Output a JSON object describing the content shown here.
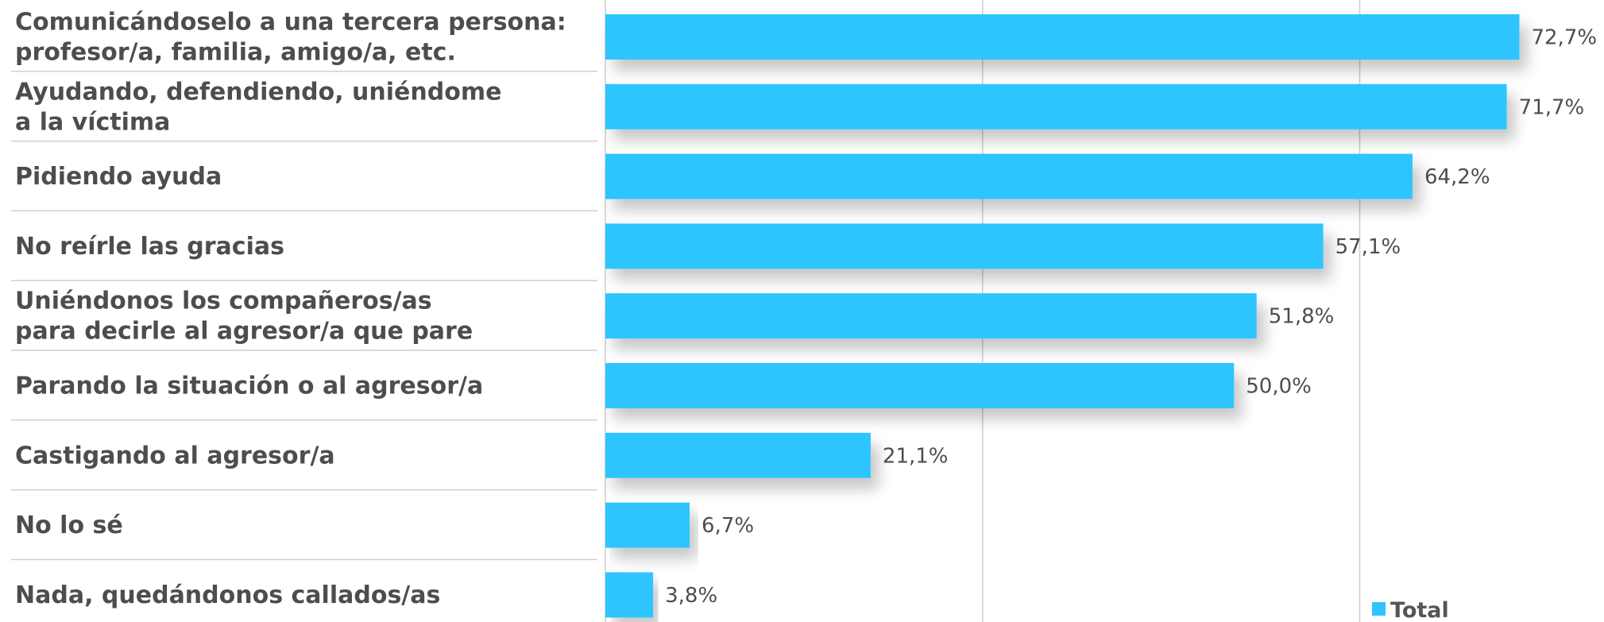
{
  "chart_data": {
    "type": "bar",
    "orientation": "horizontal",
    "categories": [
      [
        "Comunicándoselo a una tercera persona:",
        "profesor/a, familia, amigo/a, etc."
      ],
      [
        "Ayudando, defendiendo, uniéndome",
        "a la víctima"
      ],
      [
        "Pidiendo ayuda"
      ],
      [
        "No reírle las gracias"
      ],
      [
        "Uniéndonos los compañeros/as",
        "para decirle al agresor/a que pare"
      ],
      [
        "Parando la situación o al agresor/a"
      ],
      [
        "Castigando al agresor/a"
      ],
      [
        "No lo sé"
      ],
      [
        "Nada, quedándonos callados/as"
      ]
    ],
    "series": [
      {
        "name": "Total",
        "values": [
          72.7,
          71.7,
          64.2,
          57.1,
          51.8,
          50.0,
          21.1,
          6.7,
          3.8
        ],
        "value_labels": [
          "72,7%",
          "71,7%",
          "64,2%",
          "57,1%",
          "51,8%",
          "50,0%",
          "21,1%",
          "6,7%",
          "3,8%"
        ],
        "color": "#2ec5ff"
      }
    ],
    "xlim": [
      0,
      80
    ],
    "gridlines_at": [
      30,
      60
    ],
    "legend_position": "bottom-right"
  },
  "colors": {
    "bar": "#2ec5ff",
    "text": "#4d4d4d",
    "gridline": "#cccccc",
    "separator": "#d0d0d0"
  }
}
